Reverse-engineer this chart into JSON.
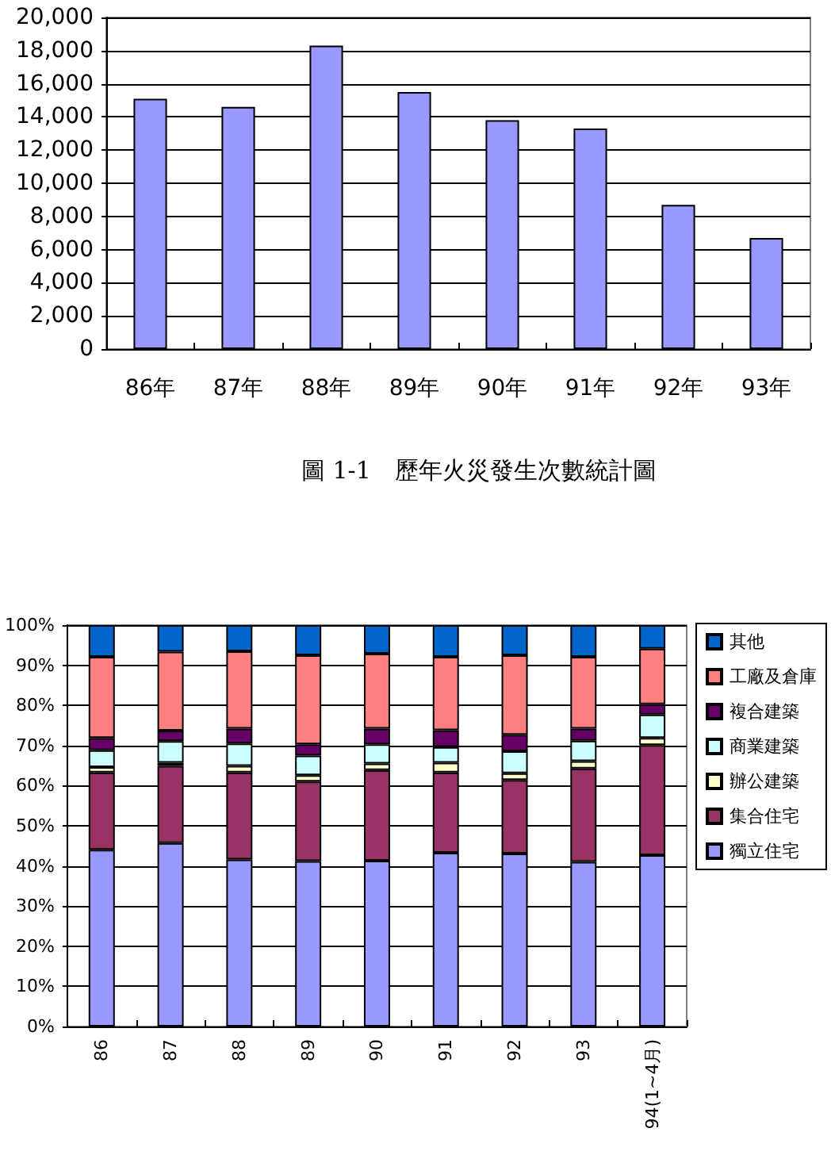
{
  "chart_data": [
    {
      "type": "bar",
      "title": "圖 1-1　歷年火災發生次數統計圖",
      "categories": [
        "86年",
        "87年",
        "88年",
        "89年",
        "90年",
        "91年",
        "92年",
        "93年"
      ],
      "values": [
        15100,
        14600,
        18300,
        15500,
        13800,
        13300,
        8700,
        6700
      ],
      "color": "#9999ff",
      "ylim": [
        0,
        20000
      ],
      "yticks": [
        0,
        {
          "value": 2000,
          "label": "2,000"
        },
        {
          "value": 4000,
          "label": "4,000"
        },
        {
          "value": 6000,
          "label": "6,000"
        },
        {
          "value": 8000,
          "label": "8,000"
        },
        {
          "value": 10000,
          "label": "10,000"
        },
        {
          "value": 12000,
          "label": "12,000"
        },
        {
          "value": 14000,
          "label": "14,000"
        },
        {
          "value": 16000,
          "label": "16,000"
        },
        {
          "value": 18000,
          "label": "18,000"
        },
        {
          "value": 20000,
          "label": "20,000"
        }
      ],
      "grid": "y",
      "legend": false
    },
    {
      "type": "bar",
      "stacked": true,
      "categories": [
        "86",
        "87",
        "88",
        "89",
        "90",
        "91",
        "92",
        "93",
        "94(1~4月)"
      ],
      "series": [
        {
          "name": "獨立住宅",
          "color": "#9999ff",
          "values": [
            44.0,
            45.7,
            41.6,
            41.2,
            41.3,
            43.3,
            43.1,
            41.0,
            42.7
          ]
        },
        {
          "name": "集合住宅",
          "color": "#993366",
          "values": [
            19.3,
            19.2,
            21.7,
            19.8,
            22.6,
            20.0,
            18.3,
            23.3,
            27.4
          ]
        },
        {
          "name": "辦公建築",
          "color": "#ffffcc",
          "values": [
            1.3,
            0.8,
            1.6,
            1.6,
            1.6,
            2.4,
            1.7,
            1.8,
            1.8
          ]
        },
        {
          "name": "商業建築",
          "color": "#ccffff",
          "values": [
            4.2,
            5.4,
            5.6,
            4.9,
            4.8,
            3.9,
            5.5,
            5.1,
            5.8
          ]
        },
        {
          "name": "複合建築",
          "color": "#660066",
          "values": [
            3.1,
            2.6,
            3.7,
            2.8,
            3.9,
            4.2,
            4.1,
            3.0,
            2.6
          ]
        },
        {
          "name": "工廠及倉庫",
          "color": "#ff8080",
          "values": [
            20.2,
            19.7,
            19.3,
            22.2,
            18.7,
            18.3,
            19.8,
            17.9,
            13.8
          ]
        },
        {
          "name": "其他",
          "color": "#0066cc",
          "values": [
            7.9,
            6.6,
            6.5,
            7.5,
            7.1,
            7.9,
            7.5,
            7.9,
            5.9
          ]
        }
      ],
      "ylim": [
        0,
        100
      ],
      "yticks": [
        {
          "value": 0,
          "label": "0%"
        },
        {
          "value": 10,
          "label": "10%"
        },
        {
          "value": 20,
          "label": "20%"
        },
        {
          "value": 30,
          "label": "30%"
        },
        {
          "value": 40,
          "label": "40%"
        },
        {
          "value": 50,
          "label": "50%"
        },
        {
          "value": 60,
          "label": "60%"
        },
        {
          "value": 70,
          "label": "70%"
        },
        {
          "value": 80,
          "label": "80%"
        },
        {
          "value": 90,
          "label": "90%"
        },
        {
          "value": 100,
          "label": "100%"
        }
      ],
      "grid": "y",
      "legend": "right"
    }
  ]
}
